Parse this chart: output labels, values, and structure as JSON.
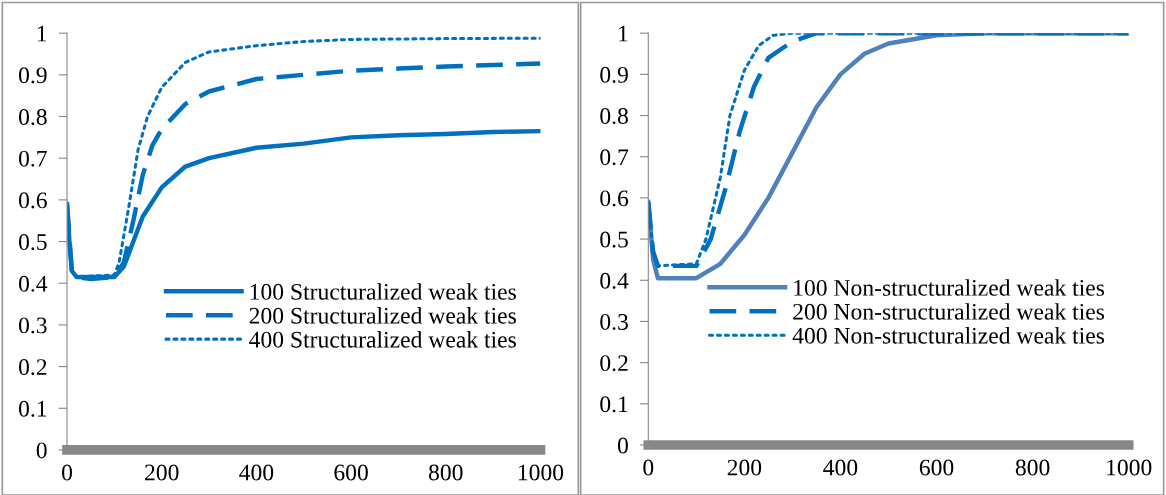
{
  "chart_data": [
    {
      "type": "line",
      "xlim": [
        0,
        1000
      ],
      "ylim": [
        0,
        1
      ],
      "xticks": [
        0,
        200,
        400,
        600,
        800,
        1000
      ],
      "yticks": [
        0,
        0.1,
        0.2,
        0.3,
        0.4,
        0.5,
        0.6,
        0.7,
        0.8,
        0.9,
        1
      ],
      "grid": false,
      "legend": "bottom right",
      "series": [
        {
          "name": "100 Structuralized weak ties",
          "color": "#0070c0",
          "line_style": "solid",
          "x": [
            0,
            5,
            10,
            20,
            50,
            100,
            120,
            140,
            160,
            200,
            250,
            300,
            400,
            500,
            600,
            700,
            800,
            900,
            1000
          ],
          "values": [
            0.59,
            0.5,
            0.43,
            0.415,
            0.415,
            0.415,
            0.44,
            0.5,
            0.56,
            0.63,
            0.68,
            0.7,
            0.725,
            0.735,
            0.75,
            0.755,
            0.758,
            0.763,
            0.765
          ]
        },
        {
          "name": "200 Structuralized weak ties",
          "color": "#0070c0",
          "line_style": "dashed",
          "x": [
            0,
            10,
            20,
            50,
            100,
            120,
            140,
            160,
            180,
            200,
            250,
            300,
            400,
            500,
            600,
            700,
            800,
            1000
          ],
          "values": [
            0.59,
            0.43,
            0.415,
            0.41,
            0.415,
            0.45,
            0.55,
            0.66,
            0.73,
            0.77,
            0.83,
            0.86,
            0.89,
            0.9,
            0.91,
            0.915,
            0.92,
            0.927
          ]
        },
        {
          "name": "400 Structuralized weak ties",
          "color": "#0070c0",
          "line_style": "dotted",
          "x": [
            0,
            10,
            20,
            100,
            110,
            130,
            150,
            170,
            200,
            250,
            300,
            400,
            500,
            600,
            800,
            1000
          ],
          "values": [
            0.59,
            0.43,
            0.415,
            0.42,
            0.45,
            0.58,
            0.72,
            0.8,
            0.87,
            0.93,
            0.955,
            0.97,
            0.98,
            0.985,
            0.987,
            0.988
          ]
        }
      ]
    },
    {
      "type": "line",
      "xlim": [
        0,
        1000
      ],
      "ylim": [
        0,
        1
      ],
      "xticks": [
        0,
        200,
        400,
        600,
        800,
        1000
      ],
      "yticks": [
        0,
        0.1,
        0.2,
        0.3,
        0.4,
        0.5,
        0.6,
        0.7,
        0.8,
        0.9,
        1
      ],
      "grid": false,
      "legend": "bottom right",
      "series": [
        {
          "name": "100 Non-structuralized weak ties",
          "color": "#4f81bd",
          "line_style": "solid",
          "x": [
            0,
            10,
            20,
            100,
            150,
            200,
            250,
            300,
            350,
            400,
            450,
            500,
            600,
            700,
            1000
          ],
          "values": [
            0.59,
            0.45,
            0.405,
            0.405,
            0.44,
            0.51,
            0.6,
            0.71,
            0.82,
            0.9,
            0.95,
            0.975,
            0.995,
            1.0,
            1.0
          ]
        },
        {
          "name": "200 Non-structuralized weak ties",
          "color": "#0070c0",
          "line_style": "dashed",
          "x": [
            0,
            10,
            20,
            100,
            130,
            160,
            190,
            220,
            250,
            300,
            350,
            1000
          ],
          "values": [
            0.59,
            0.47,
            0.435,
            0.435,
            0.5,
            0.62,
            0.76,
            0.87,
            0.94,
            0.98,
            1.0,
            1.0
          ]
        },
        {
          "name": "400 Non-structuralized weak ties",
          "color": "#0070c0",
          "line_style": "dotted",
          "x": [
            0,
            10,
            20,
            100,
            120,
            150,
            170,
            200,
            230,
            260,
            300,
            1000
          ],
          "values": [
            0.59,
            0.47,
            0.435,
            0.44,
            0.5,
            0.65,
            0.8,
            0.91,
            0.97,
            0.995,
            1.0,
            1.0
          ]
        }
      ]
    }
  ]
}
